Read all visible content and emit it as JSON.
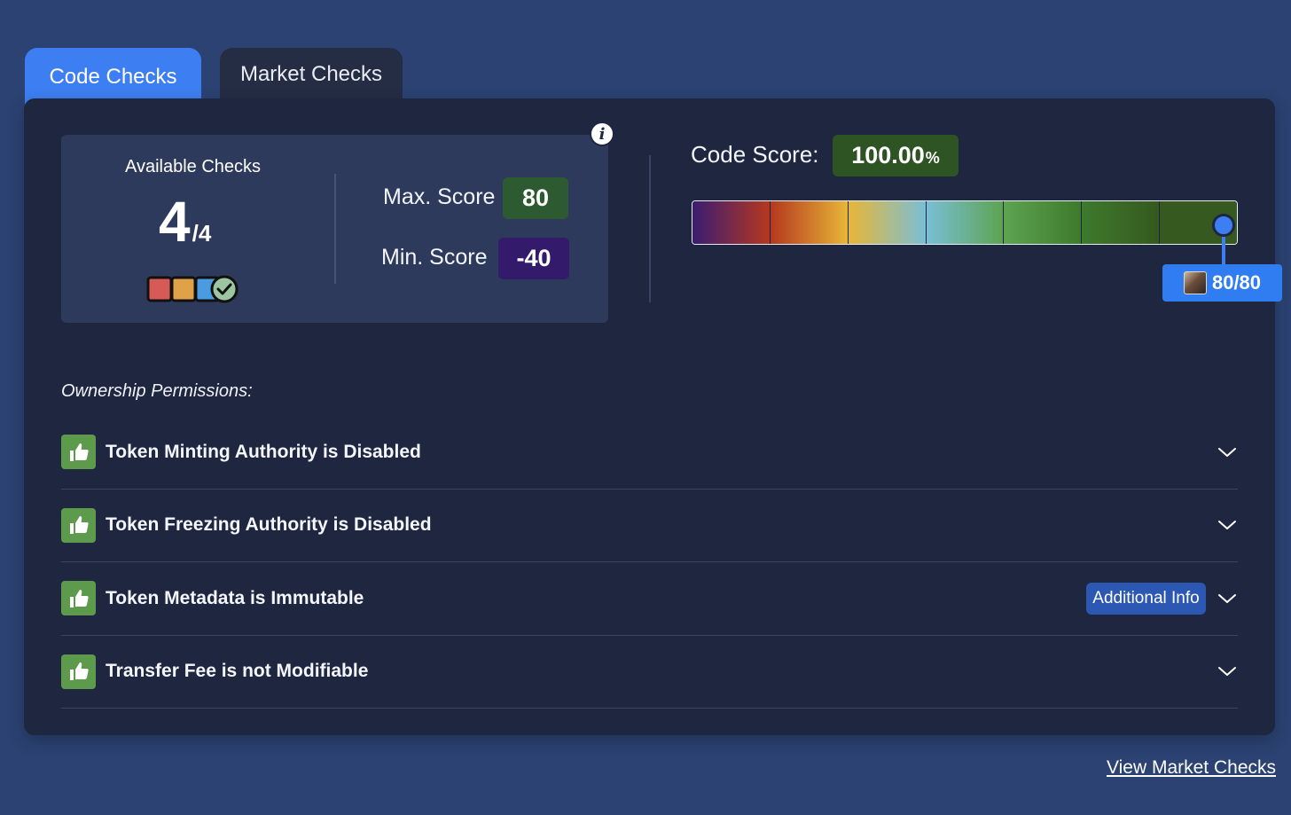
{
  "tabs": [
    {
      "label": "Code Checks",
      "active": true
    },
    {
      "label": "Market Checks",
      "active": false
    }
  ],
  "checks_summary": {
    "title": "Available Checks",
    "passed": "4",
    "total": "/4",
    "max_label": "Max. Score",
    "max_value": "80",
    "min_label": "Min. Score",
    "min_value": "-40",
    "info_icon": "i"
  },
  "code_score": {
    "label": "Code Score:",
    "value": "100.00",
    "unit": "%",
    "scale_colors": [
      "#3a1c72",
      "#b5381f",
      "#e8b637",
      "#79bfd6",
      "#5da352",
      "#3e7a2c",
      "#35591f"
    ],
    "marker_text": "80/80",
    "marker_fraction": 1.0
  },
  "ownership": {
    "title": "Ownership Permissions:",
    "items": [
      {
        "label": "Token Minting Authority is Disabled",
        "has_additional_info": false
      },
      {
        "label": "Token Freezing Authority is Disabled",
        "has_additional_info": false
      },
      {
        "label": "Token Metadata is Immutable",
        "has_additional_info": true,
        "additional_info_label": "Additional Info"
      },
      {
        "label": "Transfer Fee is not Modifiable",
        "has_additional_info": false
      }
    ]
  },
  "footer": {
    "link_label": "View Market Checks"
  },
  "colors": {
    "background": "#2b4272",
    "card": "#1e2640",
    "accent": "#3d7ff2",
    "pass_green": "#5d9a4b"
  }
}
